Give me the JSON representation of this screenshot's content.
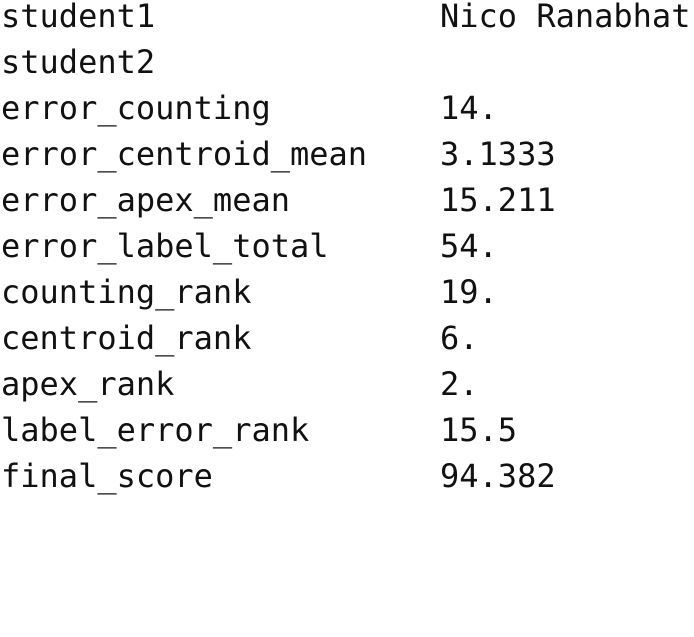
{
  "rows": [
    {
      "key": "student1",
      "value": "Nico Ranabhat"
    },
    {
      "key": "student2",
      "value": ""
    },
    {
      "key": "error_counting",
      "value": "14."
    },
    {
      "key": "error_centroid_mean",
      "value": "3.1333"
    },
    {
      "key": "error_apex_mean",
      "value": "15.211"
    },
    {
      "key": "error_label_total",
      "value": "54."
    },
    {
      "key": "counting_rank",
      "value": "19."
    },
    {
      "key": "centroid_rank",
      "value": "6."
    },
    {
      "key": "apex_rank",
      "value": "2."
    },
    {
      "key": "label_error_rank",
      "value": "15.5"
    },
    {
      "key": "final_score",
      "value": "94.382"
    }
  ]
}
